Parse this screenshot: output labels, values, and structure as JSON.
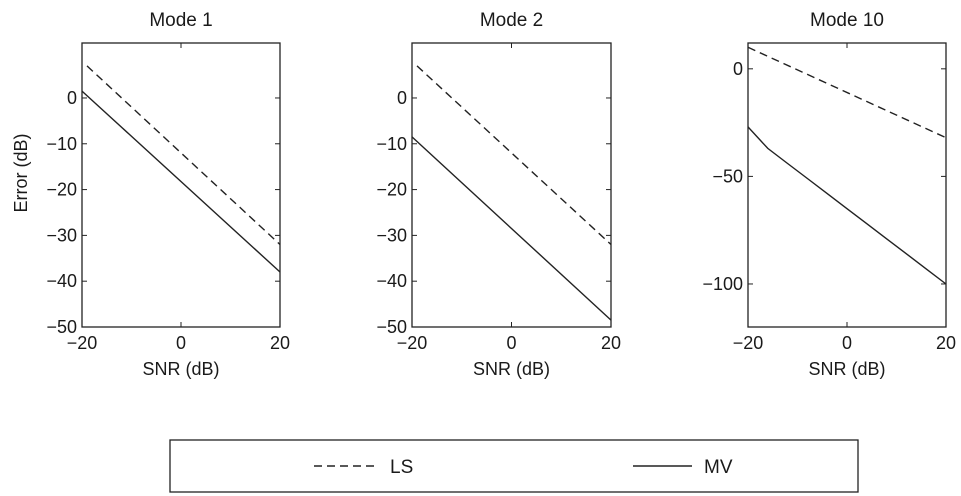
{
  "chart_data": [
    {
      "type": "line",
      "title": "Mode 1",
      "xlabel": "SNR (dB)",
      "ylabel": "Error (dB)",
      "xlim": [
        -20,
        20
      ],
      "ylim": [
        -50,
        12
      ],
      "xticks": [
        -20,
        0,
        20
      ],
      "yticks": [
        0,
        -10,
        -20,
        -30,
        -40,
        -50
      ],
      "grid": false,
      "series": [
        {
          "name": "LS",
          "style": "dashed",
          "x": [
            -19,
            20
          ],
          "y": [
            7,
            -32
          ]
        },
        {
          "name": "MV",
          "style": "solid",
          "x": [
            -20,
            20
          ],
          "y": [
            1.5,
            -38
          ]
        }
      ]
    },
    {
      "type": "line",
      "title": "Mode 2",
      "xlabel": "SNR (dB)",
      "ylabel": "",
      "xlim": [
        -20,
        20
      ],
      "ylim": [
        -50,
        12
      ],
      "xticks": [
        -20,
        0,
        20
      ],
      "yticks": [
        0,
        -10,
        -20,
        -30,
        -40,
        -50
      ],
      "grid": false,
      "series": [
        {
          "name": "LS",
          "style": "dashed",
          "x": [
            -19,
            20
          ],
          "y": [
            7,
            -32
          ]
        },
        {
          "name": "MV",
          "style": "solid",
          "x": [
            -20,
            20
          ],
          "y": [
            -8.5,
            -48.5
          ]
        }
      ]
    },
    {
      "type": "line",
      "title": "Mode 10",
      "xlabel": "SNR (dB)",
      "ylabel": "",
      "xlim": [
        -20,
        20
      ],
      "ylim": [
        -120,
        12
      ],
      "xticks": [
        -20,
        0,
        20
      ],
      "yticks": [
        0,
        -50,
        -100
      ],
      "grid": false,
      "series": [
        {
          "name": "LS",
          "style": "dashed",
          "x": [
            -20,
            20
          ],
          "y": [
            10,
            -32
          ]
        },
        {
          "name": "MV",
          "style": "solid",
          "x": [
            -20,
            -16,
            -12,
            -8,
            -4,
            0,
            4,
            8,
            12,
            16,
            20
          ],
          "y": [
            -27,
            -37,
            -44,
            -51,
            -58,
            -65,
            -72,
            -79,
            -86,
            -93,
            -100
          ]
        }
      ]
    }
  ],
  "legend": {
    "placement": "bottom",
    "entries": [
      {
        "label": "LS",
        "style": "dashed"
      },
      {
        "label": "MV",
        "style": "solid"
      }
    ]
  }
}
